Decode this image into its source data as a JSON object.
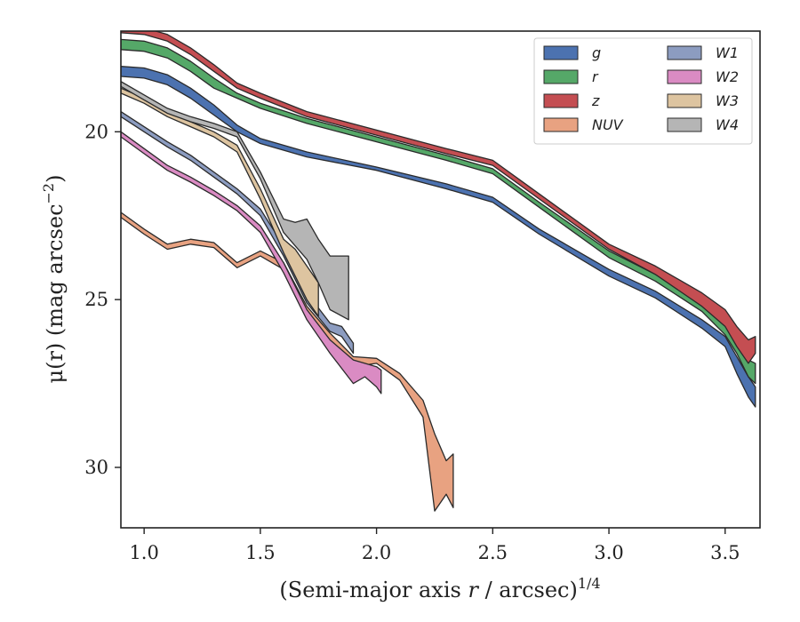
{
  "chart_data": {
    "type": "area",
    "xlabel": "(Semi-major axis r / arcsec)",
    "xlabel_italic_part": "r",
    "xlabel_exponent": "1/4",
    "ylabel": "μ(r) (mag arcsec",
    "ylabel_exponent": "−2",
    "ylabel_close": ")",
    "xlim": [
      0.9,
      3.65
    ],
    "ylim": [
      31.8,
      17.0
    ],
    "y_inverted": true,
    "xticks": [
      1.0,
      1.5,
      2.0,
      2.5,
      3.0,
      3.5
    ],
    "xtick_labels": [
      "1.0",
      "1.5",
      "2.0",
      "2.5",
      "3.0",
      "3.5"
    ],
    "yticks": [
      20,
      25,
      30
    ],
    "ytick_labels": [
      "20",
      "25",
      "30"
    ],
    "grid": false,
    "legend_position": "top-right",
    "legend_columns": 2,
    "series": [
      {
        "name": "g",
        "color": "#4c72b0",
        "x": [
          0.9,
          1.0,
          1.1,
          1.2,
          1.3,
          1.4,
          1.5,
          1.7,
          2.0,
          2.3,
          2.5,
          2.7,
          3.0,
          3.2,
          3.4,
          3.5,
          3.55,
          3.6,
          3.63
        ],
        "lo": [
          18.05,
          18.1,
          18.3,
          18.7,
          19.2,
          19.8,
          20.2,
          20.6,
          21.05,
          21.55,
          21.95,
          22.9,
          24.1,
          24.75,
          25.6,
          26.1,
          26.7,
          27.3,
          27.6
        ],
        "hi": [
          18.35,
          18.4,
          18.6,
          19.0,
          19.5,
          20.0,
          20.35,
          20.75,
          21.15,
          21.7,
          22.1,
          23.05,
          24.3,
          24.95,
          25.85,
          26.4,
          27.2,
          27.9,
          28.2
        ]
      },
      {
        "name": "r",
        "color": "#55a868",
        "x": [
          0.9,
          1.0,
          1.1,
          1.2,
          1.3,
          1.4,
          1.5,
          1.7,
          2.0,
          2.3,
          2.5,
          2.7,
          3.0,
          3.2,
          3.4,
          3.5,
          3.55,
          3.6,
          3.63
        ],
        "lo": [
          17.25,
          17.3,
          17.5,
          17.9,
          18.4,
          18.85,
          19.15,
          19.6,
          20.15,
          20.7,
          21.1,
          22.1,
          23.55,
          24.25,
          25.05,
          25.7,
          26.3,
          26.8,
          26.9
        ],
        "hi": [
          17.55,
          17.6,
          17.8,
          18.2,
          18.7,
          19.0,
          19.3,
          19.75,
          20.3,
          20.85,
          21.25,
          22.25,
          23.75,
          24.45,
          25.35,
          26.05,
          26.6,
          27.3,
          27.5
        ]
      },
      {
        "name": "z",
        "color": "#c44e52",
        "x": [
          0.9,
          1.0,
          1.1,
          1.2,
          1.3,
          1.4,
          1.5,
          1.7,
          2.0,
          2.3,
          2.5,
          2.7,
          3.0,
          3.2,
          3.4,
          3.5,
          3.55,
          3.6,
          3.63
        ],
        "lo": [
          16.85,
          16.9,
          17.1,
          17.5,
          18.0,
          18.55,
          18.85,
          19.4,
          19.95,
          20.5,
          20.85,
          21.85,
          23.35,
          24.0,
          24.8,
          25.3,
          25.8,
          26.2,
          26.1
        ],
        "hi": [
          17.05,
          17.1,
          17.3,
          17.7,
          18.2,
          18.7,
          19.0,
          19.55,
          20.1,
          20.65,
          21.0,
          22.0,
          23.5,
          24.25,
          25.2,
          25.8,
          26.4,
          26.9,
          26.6
        ]
      },
      {
        "name": "NUV",
        "color": "#e8a281",
        "x": [
          0.9,
          1.0,
          1.1,
          1.2,
          1.3,
          1.4,
          1.5,
          1.6,
          1.7,
          1.8,
          1.9,
          2.0,
          2.1,
          2.2,
          2.25,
          2.3,
          2.33
        ],
        "lo": [
          22.4,
          22.9,
          23.35,
          23.2,
          23.3,
          23.9,
          23.55,
          23.9,
          25.2,
          26.0,
          26.7,
          26.75,
          27.2,
          28.0,
          29.0,
          29.8,
          29.6
        ],
        "hi": [
          22.55,
          23.05,
          23.5,
          23.35,
          23.45,
          24.05,
          23.7,
          24.1,
          25.45,
          26.3,
          27.0,
          26.9,
          27.4,
          28.5,
          31.3,
          30.8,
          31.2
        ]
      },
      {
        "name": "W1",
        "color": "#8c9cc0",
        "x": [
          0.9,
          1.0,
          1.1,
          1.2,
          1.3,
          1.4,
          1.5,
          1.6,
          1.7,
          1.8,
          1.85,
          1.9
        ],
        "lo": [
          19.4,
          19.85,
          20.3,
          20.7,
          21.2,
          21.7,
          22.3,
          23.4,
          24.8,
          25.7,
          25.8,
          26.3
        ],
        "hi": [
          19.55,
          20.0,
          20.45,
          20.85,
          21.35,
          21.85,
          22.5,
          23.7,
          25.1,
          25.95,
          26.1,
          26.6
        ]
      },
      {
        "name": "W2",
        "color": "#da8bc3",
        "x": [
          0.9,
          1.0,
          1.1,
          1.2,
          1.3,
          1.4,
          1.5,
          1.6,
          1.7,
          1.8,
          1.9,
          1.95,
          2.0,
          2.02
        ],
        "lo": [
          20.0,
          20.5,
          21.0,
          21.35,
          21.75,
          22.2,
          22.8,
          23.9,
          25.3,
          26.2,
          26.8,
          26.9,
          27.0,
          27.1
        ],
        "hi": [
          20.15,
          20.65,
          21.15,
          21.5,
          21.9,
          22.35,
          23.0,
          24.2,
          25.6,
          26.6,
          27.5,
          27.3,
          27.6,
          27.8
        ]
      },
      {
        "name": "W3",
        "color": "#ddc4a0",
        "x": [
          0.9,
          1.0,
          1.1,
          1.2,
          1.3,
          1.4,
          1.5,
          1.6,
          1.65,
          1.7,
          1.75
        ],
        "lo": [
          18.7,
          19.0,
          19.4,
          19.7,
          20.0,
          20.4,
          21.7,
          23.2,
          23.5,
          24.0,
          24.5
        ],
        "hi": [
          18.85,
          19.15,
          19.55,
          19.85,
          20.15,
          20.6,
          22.0,
          23.6,
          24.3,
          25.0,
          25.5
        ]
      },
      {
        "name": "W4",
        "color": "#b5b5b5",
        "x": [
          0.9,
          1.0,
          1.1,
          1.2,
          1.3,
          1.4,
          1.5,
          1.6,
          1.65,
          1.7,
          1.75,
          1.8,
          1.88
        ],
        "lo": [
          18.5,
          18.9,
          19.3,
          19.55,
          19.75,
          20.0,
          21.2,
          22.6,
          22.7,
          22.6,
          23.2,
          23.7,
          23.7
        ],
        "hi": [
          18.65,
          19.05,
          19.45,
          19.7,
          19.9,
          20.15,
          21.4,
          23.0,
          23.4,
          23.8,
          24.5,
          25.3,
          25.6
        ]
      }
    ]
  }
}
